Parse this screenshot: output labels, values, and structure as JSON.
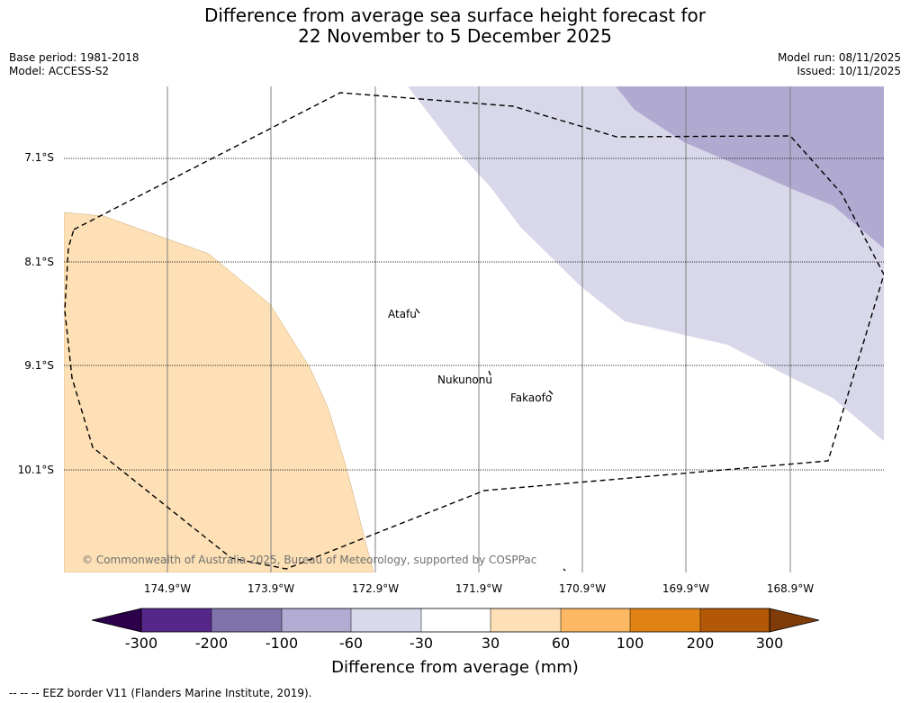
{
  "title": {
    "line1": "Difference from average sea surface height forecast for",
    "line2": "22 November to 5 December 2025"
  },
  "meta": {
    "base_period": "Base period: 1981-2018",
    "model": "Model: ACCESS-S2",
    "model_run": "Model run: 08/11/2025",
    "issued": "Issued: 10/11/2025"
  },
  "map": {
    "lat_labels": [
      "7.1°S",
      "8.1°S",
      "9.1°S",
      "10.1°S"
    ],
    "lon_labels": [
      "174.9°W",
      "173.9°W",
      "172.9°W",
      "171.9°W",
      "170.9°W",
      "169.9°W",
      "168.9°W"
    ],
    "places": [
      "Atafu",
      "Nukunonu",
      "Fakaofo"
    ],
    "copyright": "© Commonwealth of Australia 2025, Bureau of Meteorology, supported by COSPPac",
    "colors": {
      "orange_region": "#fde0b5",
      "light_purple_region": "#d8d8ea",
      "mid_purple_region": "#b0aad1",
      "eez_border": "#000000"
    }
  },
  "colorbar": {
    "ticks": [
      "-300",
      "-200",
      "-100",
      "-60",
      "-30",
      "30",
      "60",
      "100",
      "200",
      "300"
    ],
    "colors": [
      "#2d004b",
      "#542788",
      "#8073ac",
      "#b2abd2",
      "#d8daeb",
      "#ffffff",
      "#fee0b6",
      "#fdb863",
      "#e08214",
      "#b35806",
      "#7f3b08"
    ],
    "label": "Difference from average (mm)"
  },
  "footer": {
    "legend": "--  --  -- EEZ border V11 (Flanders Marine Institute, 2019)."
  }
}
